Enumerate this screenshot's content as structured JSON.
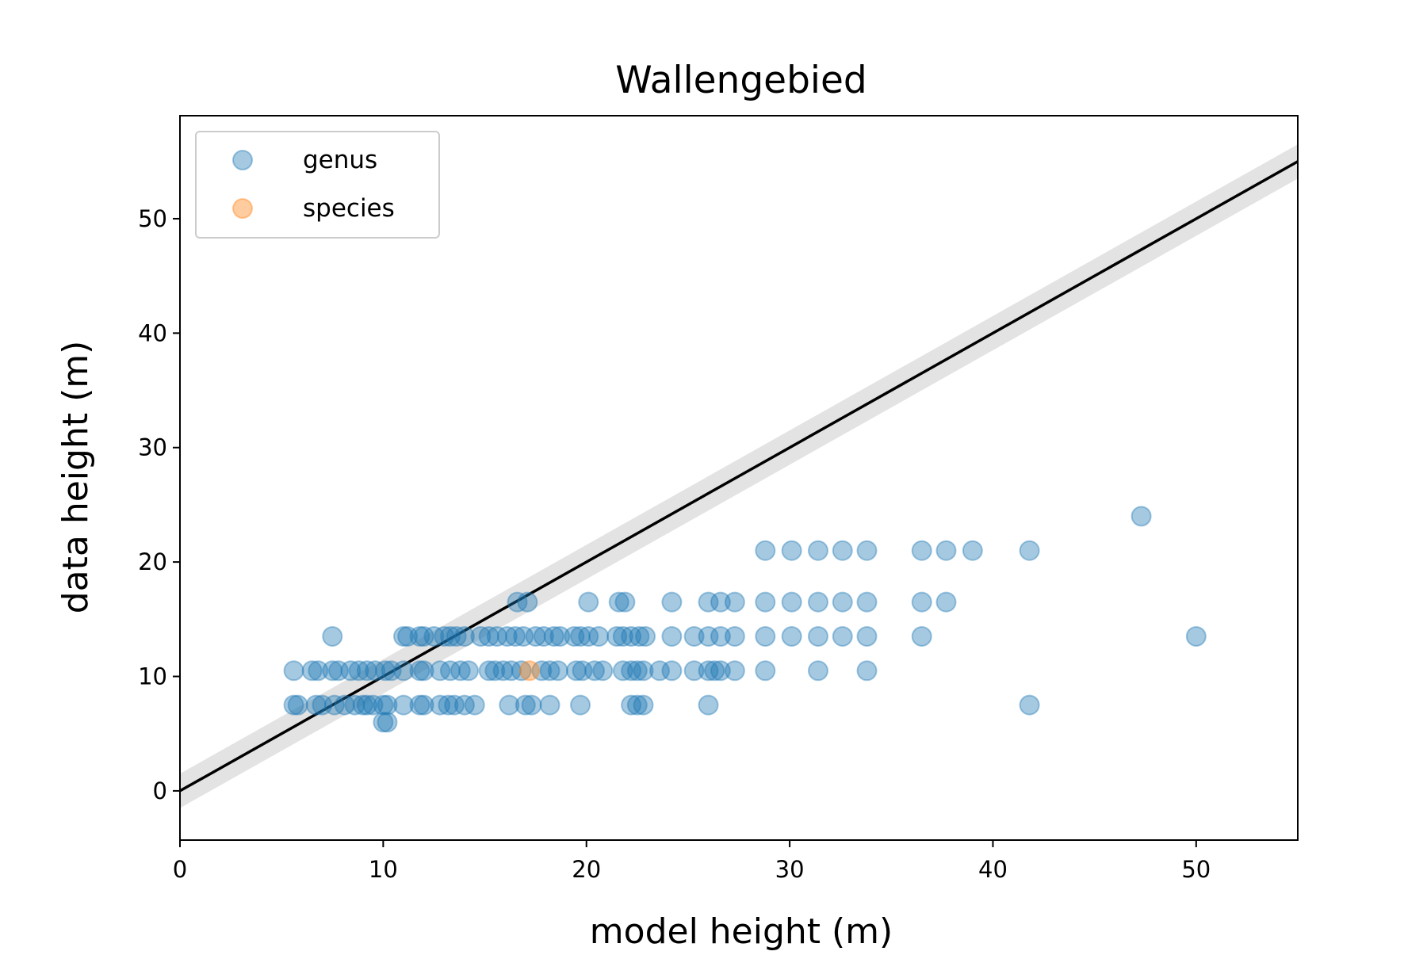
{
  "chart_data": {
    "type": "scatter",
    "title": "Wallengebied",
    "xlabel": "model height (m)",
    "ylabel": "data height (m)",
    "xlim": [
      0,
      55
    ],
    "ylim": [
      -4.3,
      59
    ],
    "xticks": [
      0,
      10,
      20,
      30,
      40,
      50
    ],
    "yticks": [
      0,
      10,
      20,
      30,
      40,
      50
    ],
    "grid": false,
    "legend": {
      "position": "upper left"
    },
    "reference_line": {
      "description": "1:1 line",
      "x": [
        0,
        55
      ],
      "y": [
        0,
        55
      ],
      "band": 1.5,
      "color": "#000000",
      "band_color": "#d9d9d9"
    },
    "series": [
      {
        "name": "genus",
        "color": "#1f77b4",
        "alpha": 0.4,
        "points": [
          [
            5.6,
            7.5
          ],
          [
            5.8,
            7.5
          ],
          [
            6.7,
            7.5
          ],
          [
            7.0,
            7.5
          ],
          [
            7.6,
            7.5
          ],
          [
            8.1,
            7.5
          ],
          [
            8.6,
            7.5
          ],
          [
            9.0,
            7.5
          ],
          [
            9.2,
            7.5
          ],
          [
            9.5,
            7.5
          ],
          [
            10.0,
            7.5
          ],
          [
            10.2,
            7.5
          ],
          [
            11.0,
            7.5
          ],
          [
            11.8,
            7.5
          ],
          [
            12.0,
            7.5
          ],
          [
            12.8,
            7.5
          ],
          [
            13.2,
            7.5
          ],
          [
            13.5,
            7.5
          ],
          [
            14.0,
            7.5
          ],
          [
            14.5,
            7.5
          ],
          [
            16.2,
            7.5
          ],
          [
            17.0,
            7.5
          ],
          [
            17.3,
            7.5
          ],
          [
            18.2,
            7.5
          ],
          [
            19.7,
            7.5
          ],
          [
            22.2,
            7.5
          ],
          [
            22.5,
            7.5
          ],
          [
            22.8,
            7.5
          ],
          [
            26.0,
            7.5
          ],
          [
            41.8,
            7.5
          ],
          [
            10.0,
            6.0
          ],
          [
            10.2,
            6.0
          ],
          [
            5.6,
            10.5
          ],
          [
            6.5,
            10.5
          ],
          [
            6.8,
            10.5
          ],
          [
            7.5,
            10.5
          ],
          [
            7.8,
            10.5
          ],
          [
            8.4,
            10.5
          ],
          [
            8.8,
            10.5
          ],
          [
            9.2,
            10.5
          ],
          [
            9.6,
            10.5
          ],
          [
            10.1,
            10.5
          ],
          [
            10.4,
            10.5
          ],
          [
            11.0,
            10.5
          ],
          [
            11.8,
            10.5
          ],
          [
            12.0,
            10.5
          ],
          [
            12.8,
            10.5
          ],
          [
            13.3,
            10.5
          ],
          [
            13.8,
            10.5
          ],
          [
            14.2,
            10.5
          ],
          [
            15.2,
            10.5
          ],
          [
            15.5,
            10.5
          ],
          [
            15.9,
            10.5
          ],
          [
            16.3,
            10.5
          ],
          [
            16.8,
            10.5
          ],
          [
            17.8,
            10.5
          ],
          [
            18.2,
            10.5
          ],
          [
            18.6,
            10.5
          ],
          [
            19.5,
            10.5
          ],
          [
            19.8,
            10.5
          ],
          [
            20.4,
            10.5
          ],
          [
            20.8,
            10.5
          ],
          [
            21.8,
            10.5
          ],
          [
            22.2,
            10.5
          ],
          [
            22.5,
            10.5
          ],
          [
            22.8,
            10.5
          ],
          [
            23.6,
            10.5
          ],
          [
            24.2,
            10.5
          ],
          [
            25.3,
            10.5
          ],
          [
            26.0,
            10.5
          ],
          [
            26.3,
            10.5
          ],
          [
            26.6,
            10.5
          ],
          [
            27.3,
            10.5
          ],
          [
            28.8,
            10.5
          ],
          [
            31.4,
            10.5
          ],
          [
            33.8,
            10.5
          ],
          [
            7.5,
            13.5
          ],
          [
            11.0,
            13.5
          ],
          [
            11.2,
            13.5
          ],
          [
            11.8,
            13.5
          ],
          [
            12.0,
            13.5
          ],
          [
            12.5,
            13.5
          ],
          [
            13.0,
            13.5
          ],
          [
            13.3,
            13.5
          ],
          [
            13.6,
            13.5
          ],
          [
            14.0,
            13.5
          ],
          [
            14.8,
            13.5
          ],
          [
            15.2,
            13.5
          ],
          [
            15.6,
            13.5
          ],
          [
            16.1,
            13.5
          ],
          [
            16.5,
            13.5
          ],
          [
            16.9,
            13.5
          ],
          [
            17.5,
            13.5
          ],
          [
            17.9,
            13.5
          ],
          [
            18.4,
            13.5
          ],
          [
            18.7,
            13.5
          ],
          [
            19.4,
            13.5
          ],
          [
            19.7,
            13.5
          ],
          [
            20.1,
            13.5
          ],
          [
            20.6,
            13.5
          ],
          [
            21.5,
            13.5
          ],
          [
            21.8,
            13.5
          ],
          [
            22.2,
            13.5
          ],
          [
            22.6,
            13.5
          ],
          [
            22.9,
            13.5
          ],
          [
            24.2,
            13.5
          ],
          [
            25.3,
            13.5
          ],
          [
            26.0,
            13.5
          ],
          [
            26.6,
            13.5
          ],
          [
            27.3,
            13.5
          ],
          [
            28.8,
            13.5
          ],
          [
            30.1,
            13.5
          ],
          [
            31.4,
            13.5
          ],
          [
            32.6,
            13.5
          ],
          [
            33.8,
            13.5
          ],
          [
            36.5,
            13.5
          ],
          [
            50.0,
            13.5
          ],
          [
            16.6,
            16.5
          ],
          [
            17.1,
            16.5
          ],
          [
            20.1,
            16.5
          ],
          [
            21.6,
            16.5
          ],
          [
            21.9,
            16.5
          ],
          [
            24.2,
            16.5
          ],
          [
            26.0,
            16.5
          ],
          [
            26.6,
            16.5
          ],
          [
            27.3,
            16.5
          ],
          [
            28.8,
            16.5
          ],
          [
            30.1,
            16.5
          ],
          [
            31.4,
            16.5
          ],
          [
            32.6,
            16.5
          ],
          [
            33.8,
            16.5
          ],
          [
            36.5,
            16.5
          ],
          [
            37.7,
            16.5
          ],
          [
            28.8,
            21.0
          ],
          [
            30.1,
            21.0
          ],
          [
            31.4,
            21.0
          ],
          [
            32.6,
            21.0
          ],
          [
            33.8,
            21.0
          ],
          [
            36.5,
            21.0
          ],
          [
            37.7,
            21.0
          ],
          [
            39.0,
            21.0
          ],
          [
            41.8,
            21.0
          ],
          [
            47.3,
            24.0
          ]
        ]
      },
      {
        "name": "species",
        "color": "#ff7f0e",
        "alpha": 0.4,
        "points": [
          [
            17.2,
            10.5
          ]
        ]
      }
    ]
  }
}
